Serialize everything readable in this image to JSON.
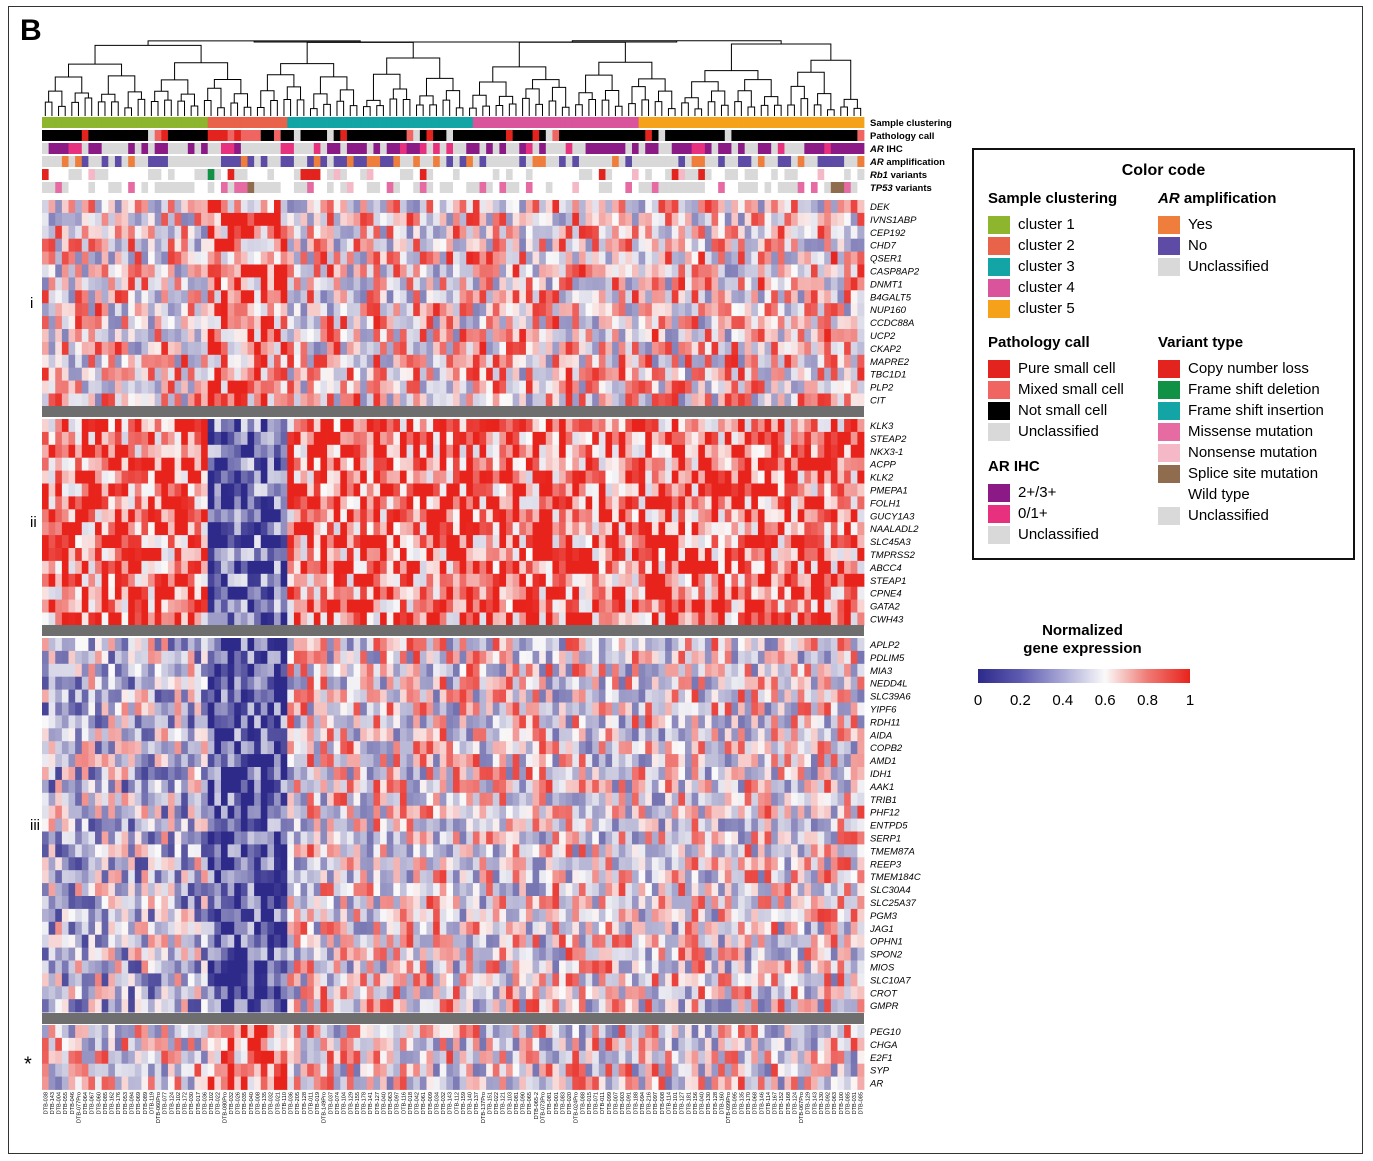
{
  "panel_label": "B",
  "track_labels": [
    "Sample clustering",
    "Pathology call",
    "AR IHC",
    "AR amplification",
    "Rb1 variants",
    "TP53 variants"
  ],
  "gene_groups": [
    {
      "label": "i",
      "genes": [
        "DEK",
        "IVNS1ABP",
        "CEP192",
        "CHD7",
        "QSER1",
        "CASP8AP2",
        "DNMT1",
        "B4GALT5",
        "NUP160",
        "CCDC88A",
        "UCP2",
        "CKAP2",
        "MAPRE2",
        "TBC1D1",
        "PLP2",
        "CIT"
      ]
    },
    {
      "label": "ii",
      "genes": [
        "KLK3",
        "STEAP2",
        "NKX3-1",
        "ACPP",
        "KLK2",
        "PMEPA1",
        "FOLH1",
        "GUCY1A3",
        "NAALADL2",
        "SLC45A3",
        "TMPRSS2",
        "ABCC4",
        "STEAP1",
        "CPNE4",
        "GATA2",
        "CWH43"
      ]
    },
    {
      "label": "iii",
      "genes": [
        "APLP2",
        "PDLIM5",
        "MIA3",
        "NEDD4L",
        "SLC39A6",
        "YIPF6",
        "RDH11",
        "AIDA",
        "COPB2",
        "AMD1",
        "IDH1",
        "AAK1",
        "TRIB1",
        "PHF12",
        "ENTPD5",
        "SERP1",
        "TMEM87A",
        "REEP3",
        "TMEM184C",
        "SLC30A4",
        "SLC25A37",
        "PGM3",
        "JAG1",
        "OPHN1",
        "SPON2",
        "MIOS",
        "SLC10A7",
        "CROT",
        "GMPR"
      ]
    },
    {
      "label": "*",
      "genes": [
        "PEG10",
        "CHGA",
        "E2F1",
        "SYP",
        "AR"
      ]
    }
  ],
  "sample_labels": [
    "DTB-038",
    "DTB-143",
    "DTB-004",
    "DTB-055",
    "DTB-046",
    "DTB-077Pro",
    "DTB-064",
    "DTB-067",
    "DTB-060",
    "DTB-085",
    "DTB-162",
    "DTB-176",
    "DTB-053",
    "DTB-094",
    "DTB-069",
    "DTB-089",
    "DTB-119",
    "DTB-060Pro",
    "DTB-077",
    "DTB-124",
    "DTB-102",
    "DTB-172",
    "DTB-030",
    "DTB-017",
    "DTB-036",
    "DTB-102",
    "DTB-022",
    "DTB-080Pro",
    "DTB-032",
    "DTB-026",
    "DTB-035",
    "DTB-040",
    "DTB-008",
    "DTB-135",
    "DTB-032",
    "DTB-021",
    "DTB-110",
    "DTB-036",
    "DTB-205",
    "DTB-128",
    "DTB-011",
    "DTB-019",
    "DTB-149Pro",
    "DTB-037",
    "DTB-074",
    "DTB-104",
    "DTB-129",
    "DTB-155",
    "DTB-178",
    "DTB-141",
    "DTB-127",
    "DTB-040",
    "DTB-063",
    "DTB-097",
    "DTB-116",
    "DTB-018",
    "DTB-042",
    "DTB-061",
    "DTB-009",
    "DTB-034",
    "DTB-032",
    "DTB-143",
    "DTB-112",
    "DTB-159",
    "DTB-140",
    "DTB-137",
    "DTB-137Pro",
    "DTB-151",
    "DTB-022",
    "DTB-121",
    "DTB-103",
    "DTB-081",
    "DTB-090",
    "DTB-065",
    "DTB-065-2",
    "DTB-073Pro",
    "DTB-081",
    "DTB-001",
    "DTB-083",
    "DTB-020",
    "DTB-024Pro",
    "DTB-088",
    "DTB-015",
    "DTB-071",
    "DTB-011",
    "DTB-099",
    "DTB-007",
    "DTB-003",
    "DTB-091",
    "DTB-188",
    "DTB-094",
    "DTB-216",
    "DTB-097",
    "DTB-008",
    "DTB-114",
    "DTB-101",
    "DTB-127",
    "DTB-181",
    "DTB-156",
    "DTB-040",
    "DTB-130",
    "DTB-128",
    "DTB-160",
    "DTB-099Pro",
    "DTB-095",
    "DTB-135",
    "DTB-170",
    "DTB-068",
    "DTB-146",
    "DTB-114",
    "DTB-167",
    "DTB-152",
    "DTB-168",
    "DTB-124",
    "DTB-067Pro",
    "DTB-129",
    "DTB-143",
    "DTB-130",
    "DTB-092",
    "DTB-063",
    "DTB-100",
    "DTB-085",
    "DTB-031",
    "DTB-085"
  ],
  "sample_cluster_assignments": [
    1,
    1,
    1,
    1,
    1,
    1,
    1,
    1,
    1,
    1,
    1,
    1,
    1,
    1,
    1,
    1,
    1,
    1,
    1,
    1,
    1,
    1,
    1,
    1,
    1,
    2,
    2,
    2,
    2,
    2,
    2,
    2,
    2,
    2,
    2,
    2,
    2,
    3,
    3,
    3,
    3,
    3,
    3,
    3,
    3,
    3,
    3,
    3,
    3,
    3,
    3,
    3,
    3,
    3,
    3,
    3,
    3,
    3,
    3,
    3,
    3,
    3,
    3,
    3,
    3,
    4,
    4,
    4,
    4,
    4,
    4,
    4,
    4,
    4,
    4,
    4,
    4,
    4,
    4,
    4,
    4,
    4,
    4,
    4,
    4,
    4,
    4,
    4,
    4,
    4,
    5,
    5,
    5,
    5,
    5,
    5,
    5,
    5,
    5,
    5,
    5,
    5,
    5,
    5,
    5,
    5,
    5,
    5,
    5,
    5,
    5,
    5,
    5,
    5,
    5,
    5,
    5,
    5,
    5,
    5,
    5,
    5,
    5,
    5
  ],
  "legend": {
    "title": "Color code",
    "sample_clustering": {
      "heading": "Sample clustering",
      "items": [
        {
          "label": "cluster 1",
          "color": "#8db52e"
        },
        {
          "label": "cluster 2",
          "color": "#e8634a"
        },
        {
          "label": "cluster 3",
          "color": "#13a5a5"
        },
        {
          "label": "cluster 4",
          "color": "#d9549a"
        },
        {
          "label": "cluster 5",
          "color": "#f5a21a"
        }
      ]
    },
    "ar_amplification": {
      "heading": "AR amplification",
      "items": [
        {
          "label": "Yes",
          "color": "#ef7d3c"
        },
        {
          "label": "No",
          "color": "#5d4ba6"
        },
        {
          "label": "Unclassified",
          "color": "#d9d9d9"
        }
      ]
    },
    "pathology_call": {
      "heading": "Pathology call",
      "items": [
        {
          "label": "Pure small cell",
          "color": "#e3231d"
        },
        {
          "label": "Mixed small cell",
          "color": "#f06461"
        },
        {
          "label": "Not small cell",
          "color": "#000000"
        },
        {
          "label": "Unclassified",
          "color": "#d9d9d9"
        }
      ]
    },
    "ar_ihc": {
      "heading": "AR IHC",
      "items": [
        {
          "label": "2+/3+",
          "color": "#8b1a86"
        },
        {
          "label": "0/1+",
          "color": "#e7307e"
        },
        {
          "label": "Unclassified",
          "color": "#d9d9d9"
        }
      ]
    },
    "variant_type": {
      "heading": "Variant type",
      "items": [
        {
          "label": "Copy number loss",
          "color": "#e3231d"
        },
        {
          "label": "Frame shift deletion",
          "color": "#109146"
        },
        {
          "label": "Frame shift insertion",
          "color": "#13a5a5"
        },
        {
          "label": "Missense mutation",
          "color": "#e66ba3"
        },
        {
          "label": "Nonsense mutation",
          "color": "#f4b8c6"
        },
        {
          "label": "Splice site mutation",
          "color": "#8e6c4d"
        },
        {
          "label": "Wild type",
          "color": ""
        },
        {
          "label": "Unclassified",
          "color": "#d9d9d9"
        }
      ]
    }
  },
  "colorbar": {
    "title_line1": "Normalized",
    "title_line2": "gene expression",
    "ticks": [
      "0",
      "0.2",
      "0.4",
      "0.6",
      "0.8",
      "1"
    ],
    "colors": [
      "#2d2a8a",
      "#fafafa",
      "#e8231c"
    ]
  },
  "chart_data": {
    "type": "heatmap",
    "title": "",
    "value_range": [
      0,
      1
    ],
    "rows_from": "gene_groups",
    "columns_from": "sample_labels",
    "note_values": "Normalized gene expression per gene (row) and sample (column); cluster 2 shows high group i and * expression and low group ii / iii expression."
  }
}
